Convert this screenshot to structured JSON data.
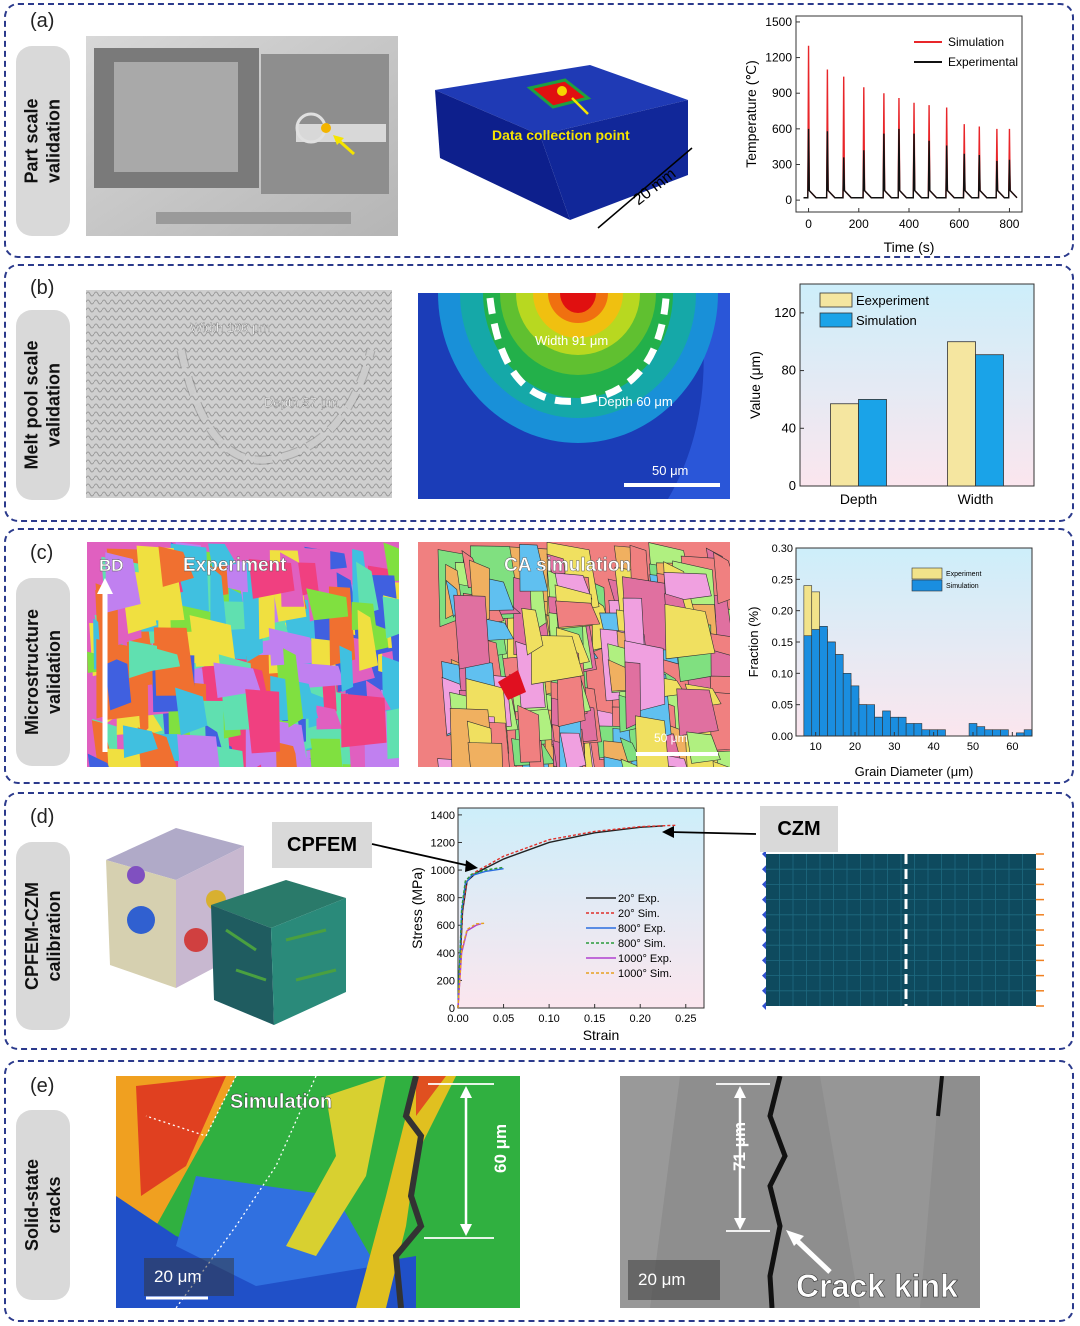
{
  "panels": {
    "a": {
      "label": "(a)",
      "side": "Part scale\nvalidation",
      "data_point": "Data collection point",
      "dimension": "20 mm"
    },
    "b": {
      "label": "(b)",
      "side": "Melt pool scale\nvalidation",
      "exp_width": "Width 100 μm",
      "exp_depth": "Depth 57 μm",
      "sim_width": "Width 91 μm",
      "sim_depth": "Depth 60 μm",
      "scale": "50 μm"
    },
    "c": {
      "label": "(c)",
      "side": "Microstructure\nvalidation",
      "bd": "BD",
      "exp": "Experiment",
      "sim": "CA simulation",
      "scale": "50 μm"
    },
    "d": {
      "label": "(d)",
      "side": "CPFEM-CZM\ncalibration",
      "cpfem": "CPFEM",
      "czm": "CZM"
    },
    "e": {
      "label": "(e)",
      "side": "Solid-state\ncracks",
      "sim": "Simulation",
      "sim_len": "60 μm",
      "sim_scale": "20 μm",
      "exp_len": "71 μm",
      "exp_scale": "20 μm",
      "kink": "Crack kink"
    }
  },
  "chart_data": [
    {
      "type": "line",
      "xlabel": "Time (s)",
      "ylabel": "Temperature (℃)",
      "xlim": [
        -50,
        850
      ],
      "ylim": [
        -100,
        1550
      ],
      "xticks": [
        0,
        200,
        400,
        600,
        800
      ],
      "yticks": [
        0,
        300,
        600,
        900,
        1200,
        1500
      ],
      "legend": "top-right",
      "series": [
        {
          "name": "Simulation",
          "color": "#e8262a",
          "peaks": [
            [
              0,
              1300
            ],
            [
              75,
              1100
            ],
            [
              140,
              1040
            ],
            [
              220,
              950
            ],
            [
              300,
              900
            ],
            [
              360,
              860
            ],
            [
              420,
              820
            ],
            [
              480,
              800
            ],
            [
              550,
              780
            ],
            [
              620,
              640
            ],
            [
              680,
              620
            ],
            [
              750,
              600
            ],
            [
              800,
              600
            ]
          ]
        },
        {
          "name": "Experimental",
          "color": "#111111",
          "peaks": [
            [
              0,
              600
            ],
            [
              75,
              580
            ],
            [
              140,
              360
            ],
            [
              220,
              420
            ],
            [
              300,
              560
            ],
            [
              360,
              600
            ],
            [
              420,
              560
            ],
            [
              480,
              500
            ],
            [
              550,
              460
            ],
            [
              620,
              390
            ],
            [
              680,
              380
            ],
            [
              750,
              330
            ],
            [
              800,
              340
            ]
          ]
        }
      ],
      "baseline": 20
    },
    {
      "type": "bar",
      "categories": [
        "Depth",
        "Width"
      ],
      "ylabel": "Value (μm)",
      "ylim": [
        0,
        140
      ],
      "yticks": [
        0,
        40,
        80,
        120
      ],
      "legend": "top-left",
      "series": [
        {
          "name": "Eexperiment",
          "color": "#f5e6a0",
          "values": [
            57,
            100
          ]
        },
        {
          "name": "Simulation",
          "color": "#1aa3e8",
          "values": [
            60,
            91
          ]
        }
      ]
    },
    {
      "type": "bar",
      "xlabel": "Grain Diameter (μm)",
      "ylabel": "Fraction (%)",
      "xlim": [
        5,
        65
      ],
      "ylim": [
        0,
        0.3
      ],
      "xticks": [
        10,
        20,
        30,
        40,
        50,
        60
      ],
      "yticks": [
        "0.00",
        "0.05",
        "0.10",
        "0.15",
        "0.20",
        "0.25",
        "0.30"
      ],
      "legend": "top-right",
      "bin_width": 2,
      "bin_start": 7,
      "series": [
        {
          "name": "Experiment",
          "color": "#f2e38a",
          "values": [
            0.24,
            0.23,
            0.17,
            0.15,
            0.13,
            0.09,
            0.06,
            0.05,
            0.04,
            0.03,
            0.025,
            0.02,
            0.02,
            0.01,
            0.01,
            0,
            0,
            0,
            0,
            0,
            0,
            0,
            0,
            0,
            0,
            0,
            0,
            0,
            0
          ]
        },
        {
          "name": "Simulation",
          "color": "#1a8ee0",
          "values": [
            0.16,
            0.17,
            0.175,
            0.15,
            0.13,
            0.1,
            0.08,
            0.05,
            0.05,
            0.03,
            0.04,
            0.03,
            0.03,
            0.02,
            0.02,
            0.01,
            0.01,
            0.01,
            0,
            0,
            0,
            0.02,
            0.015,
            0.01,
            0.01,
            0.01,
            0,
            0.005,
            0.01
          ]
        }
      ]
    },
    {
      "type": "line",
      "xlabel": "Strain",
      "ylabel": "Stress (MPa)",
      "xlim": [
        0,
        0.27
      ],
      "ylim": [
        0,
        1450
      ],
      "xticks": [
        "0.00",
        "0.05",
        "0.10",
        "0.15",
        "0.20",
        "0.25"
      ],
      "yticks": [
        0,
        200,
        400,
        600,
        800,
        1000,
        1200,
        1400
      ],
      "legend": "right",
      "series": [
        {
          "name": "20° Exp.",
          "color": "#222222",
          "dash": "",
          "points": [
            [
              0,
              0
            ],
            [
              0.005,
              700
            ],
            [
              0.01,
              920
            ],
            [
              0.02,
              980
            ],
            [
              0.05,
              1080
            ],
            [
              0.1,
              1200
            ],
            [
              0.15,
              1270
            ],
            [
              0.2,
              1310
            ],
            [
              0.225,
              1320
            ]
          ]
        },
        {
          "name": "20° Sim.",
          "color": "#e0302a",
          "dash": "3,2",
          "points": [
            [
              0,
              0
            ],
            [
              0.005,
              720
            ],
            [
              0.01,
              930
            ],
            [
              0.02,
              990
            ],
            [
              0.05,
              1100
            ],
            [
              0.1,
              1220
            ],
            [
              0.15,
              1280
            ],
            [
              0.2,
              1315
            ],
            [
              0.24,
              1325
            ]
          ]
        },
        {
          "name": "800° Exp.",
          "color": "#2a6ee0",
          "dash": "",
          "points": [
            [
              0,
              0
            ],
            [
              0.004,
              700
            ],
            [
              0.008,
              900
            ],
            [
              0.015,
              960
            ],
            [
              0.03,
              990
            ],
            [
              0.05,
              1010
            ]
          ]
        },
        {
          "name": "800° Sim.",
          "color": "#2a9a3a",
          "dash": "3,2",
          "points": [
            [
              0,
              0
            ],
            [
              0.004,
              720
            ],
            [
              0.008,
              920
            ],
            [
              0.015,
              970
            ],
            [
              0.03,
              1000
            ],
            [
              0.05,
              1020
            ]
          ]
        },
        {
          "name": "1000° Exp.",
          "color": "#b040d0",
          "dash": "",
          "points": [
            [
              0,
              0
            ],
            [
              0.004,
              400
            ],
            [
              0.01,
              560
            ],
            [
              0.02,
              600
            ],
            [
              0.025,
              610
            ]
          ]
        },
        {
          "name": "1000° Sim.",
          "color": "#e8a020",
          "dash": "3,2",
          "points": [
            [
              0,
              0
            ],
            [
              0.004,
              420
            ],
            [
              0.01,
              570
            ],
            [
              0.02,
              610
            ],
            [
              0.03,
              615
            ]
          ]
        }
      ]
    }
  ]
}
